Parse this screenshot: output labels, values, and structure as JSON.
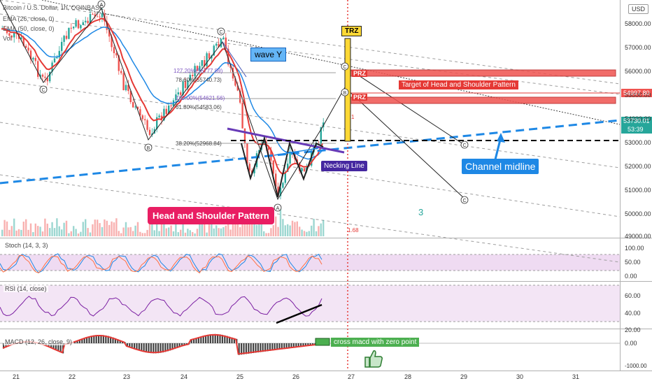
{
  "legend": {
    "symbol_line": "Bitcoin / U.S. Dollar, 1h, COINBASE",
    "ema1": "EMA (26, close, 0)",
    "ema2": "EMA (50, close, 0)",
    "vol": "Vol"
  },
  "currency_button": "USD",
  "price_axis": [
    "58000.00",
    "57000.00",
    "56000.00",
    "55000.00",
    "54000.00",
    "53000.00",
    "52000.00",
    "51000.00",
    "50000.00",
    "49000.00"
  ],
  "price_tags": {
    "target": "54997.80",
    "current": "53730.01",
    "countdown": "53:39"
  },
  "time_axis": [
    "21",
    "22",
    "23",
    "24",
    "25",
    "26",
    "27",
    "28",
    "29",
    "30",
    "31"
  ],
  "stoch": {
    "title": "Stoch (14, 3, 3)",
    "levels": [
      "100.00",
      "50.00",
      "0.00"
    ]
  },
  "rsi": {
    "title": "RSI (14, close)",
    "levels": [
      "60.00",
      "40.00",
      "20.00"
    ]
  },
  "macd": {
    "title": "MACD (12, 26, close, 9)",
    "levels": [
      "0.00",
      "-1000.00"
    ]
  },
  "annotations": {
    "trz": "TRZ",
    "wave_y": "wave Y",
    "prz": "PRZ",
    "target_label": "Target of Head and Shoulder Pattern",
    "necking_line": "Necking Line",
    "channel_midline": "Channel midline",
    "hs_pattern": "Head and Shoulder Pattern",
    "cross_macd": "cross macd with zero point",
    "wave_3": "3",
    "fib_127": "127.20%(56777.89)",
    "fib_786": "78.60%(55740.73)",
    "fib_100": "100.00%(54621.56)",
    "fib_618": "61.80%(54583.06)",
    "fib_382": "38.20%(52968.84)",
    "red_1": "1",
    "red_68": "1.68",
    "wave_a": "A",
    "wave_b": "B",
    "wave_c": "C"
  },
  "colors": {
    "up": "#26a69a",
    "down": "#ef5350",
    "ema_fast": "#e53935",
    "ema_slow": "#1e88e5",
    "channel": "#1e88e5",
    "prz": "#e53935",
    "trz": "#fdd835",
    "purple": "#673ab7",
    "callout_red": "#e91e63",
    "green": "#4caf50",
    "osc_band": "#e1bee7"
  }
}
